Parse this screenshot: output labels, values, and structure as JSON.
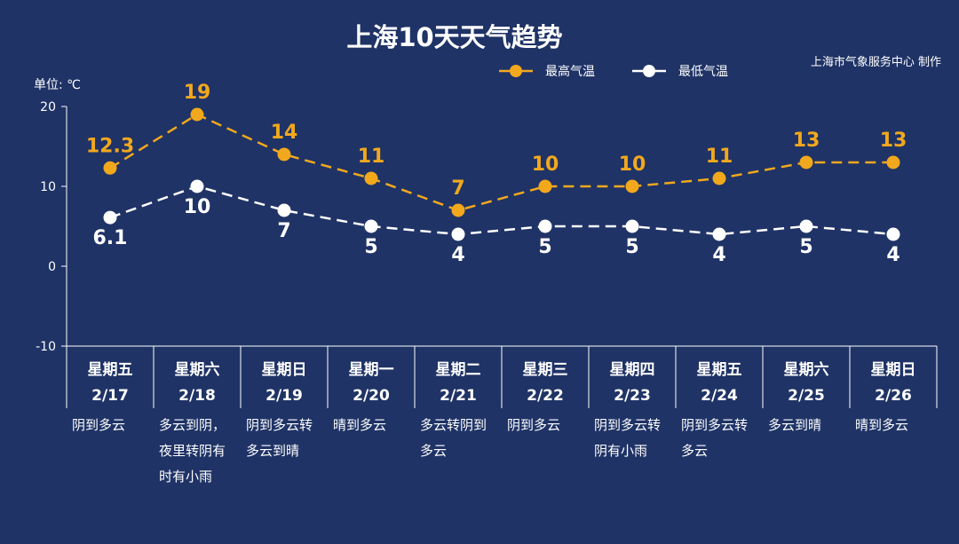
{
  "colors": {
    "background": "#1f3366",
    "high": "#f2a81d",
    "low": "#ffffff"
  },
  "source": "上海市气象服务中心 制作",
  "chart_data": {
    "type": "line",
    "title": "上海10天天气趋势",
    "ylabel": "单位: ℃",
    "ylim": [
      -10,
      20
    ],
    "yticks": [
      "20",
      "10",
      "0",
      "-10"
    ],
    "legend_position": "top-right",
    "grid": false,
    "days": [
      {
        "weekday": "星期五",
        "date": "2/17",
        "weather": [
          "阴到多云"
        ]
      },
      {
        "weekday": "星期六",
        "date": "2/18",
        "weather": [
          "多云到阴，",
          "夜里转阴有",
          "时有小雨"
        ]
      },
      {
        "weekday": "星期日",
        "date": "2/19",
        "weather": [
          "阴到多云转",
          "多云到晴"
        ]
      },
      {
        "weekday": "星期一",
        "date": "2/20",
        "weather": [
          "晴到多云"
        ]
      },
      {
        "weekday": "星期二",
        "date": "2/21",
        "weather": [
          "多云转阴到",
          "多云"
        ]
      },
      {
        "weekday": "星期三",
        "date": "2/22",
        "weather": [
          "阴到多云"
        ]
      },
      {
        "weekday": "星期四",
        "date": "2/23",
        "weather": [
          "阴到多云转",
          "阴有小雨"
        ]
      },
      {
        "weekday": "星期五",
        "date": "2/24",
        "weather": [
          "阴到多云转",
          "多云"
        ]
      },
      {
        "weekday": "星期六",
        "date": "2/25",
        "weather": [
          "多云到晴"
        ]
      },
      {
        "weekday": "星期日",
        "date": "2/26",
        "weather": [
          "晴到多云"
        ]
      }
    ],
    "series": [
      {
        "name": "最高气温",
        "key": "high",
        "values": [
          12.3,
          19,
          14,
          11,
          7,
          10,
          10,
          11,
          13,
          13
        ]
      },
      {
        "name": "最低气温",
        "key": "low",
        "values": [
          6.1,
          10,
          7,
          5,
          4,
          5,
          5,
          4,
          5,
          4
        ]
      }
    ]
  }
}
